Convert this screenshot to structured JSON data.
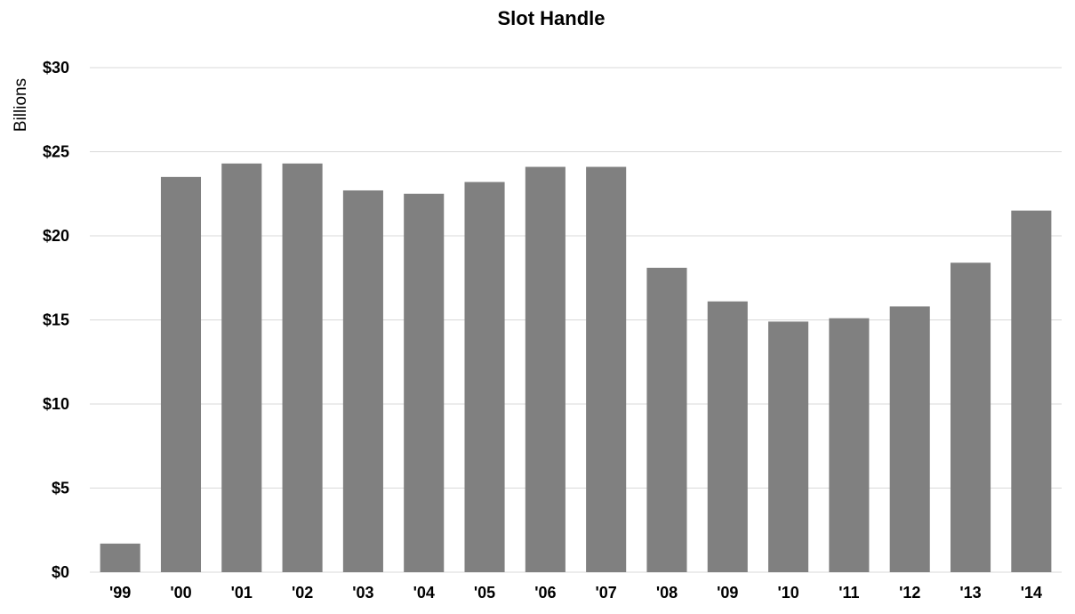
{
  "chart_data": {
    "type": "bar",
    "title": "Slot Handle",
    "xlabel": "",
    "ylabel": "Billions",
    "categories": [
      "'99",
      "'00",
      "'01",
      "'02",
      "'03",
      "'04",
      "'05",
      "'06",
      "'07",
      "'08",
      "'09",
      "'10",
      "'11",
      "'12",
      "'13",
      "'14"
    ],
    "values": [
      1.7,
      23.5,
      24.3,
      24.3,
      22.7,
      22.5,
      23.2,
      24.1,
      24.1,
      18.1,
      16.1,
      14.9,
      15.1,
      15.8,
      18.4,
      21.5
    ],
    "ylim": [
      0,
      30
    ],
    "yticks": [
      0,
      5,
      10,
      15,
      20,
      25,
      30
    ],
    "ytick_labels": [
      "$0",
      "$5",
      "$10",
      "$15",
      "$20",
      "$25",
      "$30"
    ],
    "grid": true,
    "legend": "none",
    "bar_color": "#808080",
    "grid_color": "#d9d9d9"
  }
}
